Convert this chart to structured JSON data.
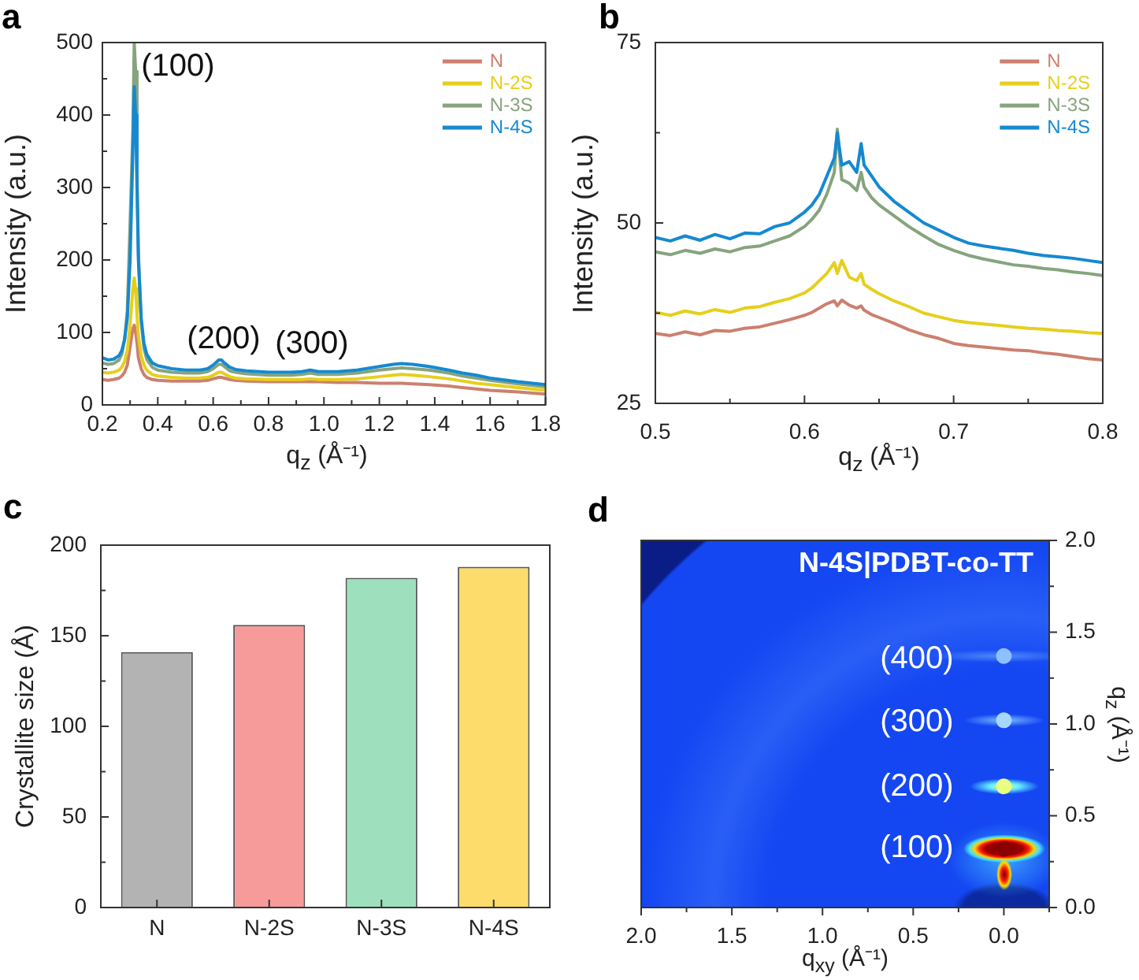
{
  "chart_data": [
    {
      "type": "line",
      "annotations": [
        "a",
        "(100)",
        "(200)",
        "(300)"
      ],
      "xlabel": "q$_{z}$ (Å⁻¹)",
      "ylabel": "Intensity (a.u.)",
      "legend": "top right",
      "marker": "none",
      "xlim": [
        0.2,
        1.8
      ],
      "xticks": [
        0.2,
        {
          "value": 0.3,
          "label": null
        },
        0.4,
        {
          "value": 0.5,
          "label": null
        },
        0.6,
        {
          "value": 0.7,
          "label": null
        },
        0.8,
        {
          "value": 0.9,
          "label": null
        },
        {
          "value": 1,
          "label": "1.0"
        },
        {
          "value": 1.1,
          "label": null
        },
        1.2,
        {
          "value": 1.3,
          "label": null
        },
        1.4,
        {
          "value": 1.5,
          "label": null
        },
        1.6,
        {
          "value": 1.7,
          "label": null
        },
        1.8
      ],
      "ylim": [
        0,
        500
      ],
      "yticks": [
        0,
        {
          "value": 50,
          "label": null
        },
        100,
        {
          "value": 150,
          "label": null
        },
        200,
        {
          "value": 250,
          "label": null
        },
        300,
        {
          "value": 350,
          "label": null
        },
        400,
        {
          "value": 450,
          "label": null
        },
        500
      ],
      "x": [
        0.2,
        0.22,
        0.24,
        0.26,
        0.27,
        0.28,
        0.29,
        0.3,
        0.31,
        0.315,
        0.32,
        0.325,
        0.33,
        0.34,
        0.35,
        0.36,
        0.38,
        0.4,
        0.45,
        0.5,
        0.55,
        0.58,
        0.6,
        0.62,
        0.63,
        0.64,
        0.66,
        0.68,
        0.72,
        0.8,
        0.88,
        0.92,
        0.95,
        0.98,
        1.05,
        1.12,
        1.2,
        1.25,
        1.28,
        1.32,
        1.38,
        1.45,
        1.5,
        1.55,
        1.6,
        1.7,
        1.8
      ],
      "series": [
        {
          "name": "N",
          "color": "#cc8070",
          "values": [
            35,
            34,
            35,
            37,
            40,
            45,
            55,
            80,
            105,
            110,
            100,
            85,
            65,
            50,
            42,
            38,
            35,
            34,
            33,
            33,
            33,
            34,
            36,
            38,
            38,
            37,
            35,
            34,
            33,
            32,
            32,
            32,
            32,
            32,
            31,
            31,
            30,
            30,
            30,
            29,
            28,
            26,
            24,
            22,
            20,
            18,
            15
          ]
        },
        {
          "name": "N-2S",
          "color": "#e6cf1c",
          "values": [
            45,
            44,
            45,
            48,
            52,
            60,
            75,
            110,
            160,
            175,
            160,
            125,
            95,
            68,
            55,
            48,
            42,
            40,
            38,
            37,
            37,
            38,
            41,
            45,
            45,
            43,
            39,
            37,
            36,
            35,
            35,
            35,
            36,
            35,
            35,
            36,
            39,
            41,
            42,
            41,
            39,
            36,
            33,
            30,
            28,
            24,
            20
          ]
        },
        {
          "name": "N-3S",
          "color": "#86a47e",
          "values": [
            58,
            56,
            57,
            62,
            70,
            90,
            130,
            250,
            380,
            500,
            460,
            320,
            210,
            115,
            78,
            63,
            52,
            48,
            45,
            44,
            44,
            46,
            50,
            56,
            56,
            53,
            47,
            45,
            43,
            41,
            41,
            42,
            44,
            42,
            42,
            44,
            48,
            50,
            51,
            50,
            48,
            44,
            40,
            37,
            34,
            29,
            25
          ]
        },
        {
          "name": "N-4S",
          "color": "#1589d0",
          "values": [
            65,
            62,
            63,
            68,
            75,
            90,
            120,
            200,
            350,
            439,
            400,
            300,
            200,
            120,
            85,
            70,
            58,
            54,
            50,
            48,
            48,
            50,
            55,
            62,
            62,
            58,
            52,
            49,
            47,
            45,
            45,
            46,
            48,
            46,
            46,
            48,
            53,
            56,
            57,
            56,
            53,
            48,
            44,
            41,
            37,
            32,
            28
          ]
        }
      ]
    },
    {
      "type": "line",
      "annotations": [
        "b"
      ],
      "xlabel": "q$_{z}$ (Å⁻¹)",
      "ylabel": "Intensity (a.u.)",
      "legend": "top right",
      "marker": "none",
      "xlim": [
        0.5,
        0.8
      ],
      "xticks": [
        0.5,
        {
          "value": 0.55,
          "label": null
        },
        0.6,
        {
          "value": 0.65,
          "label": null
        },
        0.7,
        {
          "value": 0.75,
          "label": null
        },
        0.8
      ],
      "ylim": [
        25,
        75
      ],
      "yticks": [
        25,
        {
          "value": 37.5,
          "label": null
        },
        50,
        {
          "value": 62.5,
          "label": null
        },
        75
      ],
      "x": [
        0.5,
        0.51,
        0.52,
        0.53,
        0.54,
        0.55,
        0.56,
        0.57,
        0.58,
        0.59,
        0.6,
        0.605,
        0.61,
        0.615,
        0.62,
        0.622,
        0.625,
        0.63,
        0.635,
        0.638,
        0.64,
        0.645,
        0.65,
        0.66,
        0.67,
        0.68,
        0.69,
        0.7,
        0.71,
        0.72,
        0.73,
        0.74,
        0.75,
        0.76,
        0.77,
        0.78,
        0.79,
        0.8
      ],
      "series": [
        {
          "name": "N",
          "color": "#cc8070",
          "values": [
            34.7,
            34.4,
            34.9,
            34.5,
            35.1,
            35,
            35.4,
            35.6,
            36.1,
            36.6,
            37.2,
            37.6,
            38.2,
            38.8,
            39.2,
            38.5,
            39.3,
            38.6,
            38.2,
            38.5,
            37.9,
            37.3,
            36.9,
            36.1,
            35.2,
            34.5,
            34,
            33.3,
            33,
            32.8,
            32.6,
            32.4,
            32.3,
            32,
            31.8,
            31.5,
            31.2,
            31
          ]
        },
        {
          "name": "N-2S",
          "color": "#e6cf1c",
          "values": [
            37.6,
            37.2,
            37.8,
            37.4,
            38,
            37.6,
            38.2,
            38.4,
            39,
            39.5,
            40.3,
            41,
            42,
            43,
            44.5,
            43,
            44.8,
            42.5,
            42,
            43,
            41.5,
            40.8,
            40.2,
            39.2,
            38.4,
            37.5,
            37,
            36.5,
            36.2,
            36,
            35.8,
            35.6,
            35.4,
            35.3,
            35.1,
            35,
            34.8,
            34.7
          ]
        },
        {
          "name": "N-3S",
          "color": "#86a47e",
          "values": [
            46,
            45.6,
            46.2,
            45.8,
            46.4,
            46,
            46.6,
            46.8,
            47.5,
            48.2,
            49.5,
            50.5,
            51.8,
            54,
            57,
            63,
            56,
            55.5,
            54.5,
            57,
            55,
            53.5,
            52.5,
            51,
            49.5,
            48.2,
            47,
            46.2,
            45.5,
            45,
            44.6,
            44.2,
            44,
            43.7,
            43.5,
            43.2,
            43,
            42.7
          ]
        },
        {
          "name": "N-4S",
          "color": "#1589d0",
          "values": [
            48,
            47.5,
            48.2,
            47.6,
            48.4,
            47.8,
            48.6,
            48.5,
            49.5,
            50,
            51.5,
            52.5,
            54,
            56.5,
            59,
            62.5,
            58,
            58.5,
            57,
            61,
            58,
            56.5,
            55,
            53,
            51.5,
            50,
            49,
            48,
            47.2,
            46.8,
            46.5,
            46.2,
            45.8,
            45.5,
            45.3,
            45.1,
            44.8,
            44.5
          ]
        }
      ]
    },
    {
      "type": "bar",
      "annotations": [
        "c"
      ],
      "ylabel": "Crystallite size (Å)",
      "categories": [
        "N",
        "N-2S",
        "N-3S",
        "N-4S"
      ],
      "values": [
        141,
        156,
        182,
        188
      ],
      "colors": [
        "#b3b3b3",
        "#f79a9a",
        "#9ee0bd",
        "#fedc6c"
      ],
      "ylim": [
        0,
        200
      ],
      "yticks": [
        0,
        {
          "value": 25,
          "label": null
        },
        50,
        {
          "value": 75,
          "label": null
        },
        100,
        {
          "value": 125,
          "label": null
        },
        150,
        {
          "value": 175,
          "label": null
        },
        200
      ]
    },
    {
      "type": "scatter",
      "title": "N-4S|PDBT-co-TT",
      "annotations": [
        "d",
        "(400)",
        "(300)",
        "(200)",
        "(100)"
      ],
      "xlabel": "q$_{xy}$ (Å⁻¹)",
      "ylabel": "q$_{z}$ (Å⁻¹)",
      "marker": "circle",
      "x": [
        0,
        0,
        0,
        0
      ],
      "values": [
        1.37,
        1.02,
        0.66,
        0.32
      ],
      "colors": [
        "#8cc0ff",
        "#a6d8ff",
        "#eaff80",
        "#8b0000"
      ],
      "xlim": [
        2,
        -0.25
      ],
      "xticks": [
        {
          "value": 2,
          "label": "2.0"
        },
        {
          "value": 1.75,
          "label": null
        },
        1.5,
        {
          "value": 1.25,
          "label": null
        },
        {
          "value": 1,
          "label": "1.0"
        },
        {
          "value": 0.75,
          "label": null
        },
        0.5,
        {
          "value": 0.25,
          "label": null
        },
        {
          "value": 0,
          "label": "0.0"
        },
        {
          "value": -0.25,
          "label": null
        }
      ],
      "ylim": [
        0,
        2
      ],
      "yticks": [
        {
          "value": 0,
          "label": "0.0"
        },
        {
          "value": 0.25,
          "label": null
        },
        0.5,
        {
          "value": 0.75,
          "label": null
        },
        {
          "value": 1,
          "label": "1.0"
        },
        {
          "value": 1.25,
          "label": null
        },
        1.5,
        {
          "value": 1.75,
          "label": null
        },
        {
          "value": 2,
          "label": "2.0"
        }
      ]
    }
  ]
}
